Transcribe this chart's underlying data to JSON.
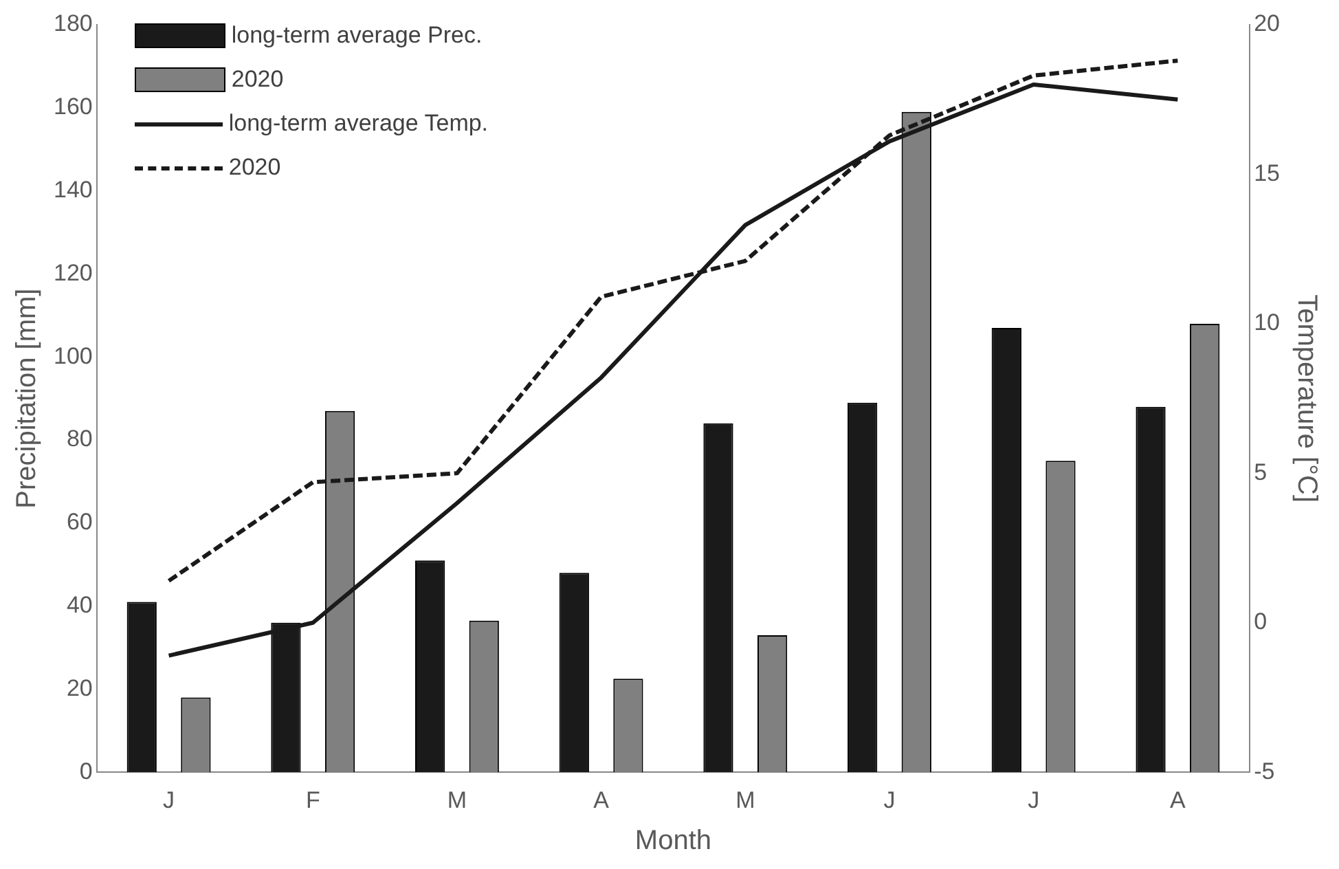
{
  "chart_data": {
    "type": "bar",
    "xlabel": "Month",
    "ylabel": "Precipitation [mm]",
    "y2label": "Temperature [°C]",
    "categories": [
      "J",
      "F",
      "M",
      "A",
      "M",
      "J",
      "J",
      "A"
    ],
    "series": [
      {
        "name": "long-term average Prec.",
        "color": "#1a1a1a",
        "values": [
          41,
          36,
          51,
          48,
          84,
          89,
          107,
          88
        ]
      },
      {
        "name": "2020",
        "color": "#808080",
        "values": [
          18,
          87,
          36.5,
          22.5,
          33,
          159,
          75,
          108
        ]
      },
      {
        "name": "long-term average Temp.",
        "type": "line",
        "axis": "y2",
        "color": "#1a1a1a",
        "line_style": "solid",
        "values": [
          -1.1,
          0,
          4,
          8.2,
          13.3,
          16.1,
          18,
          17.5
        ]
      },
      {
        "name": "2020",
        "type": "line",
        "axis": "y2",
        "color": "#1a1a1a",
        "line_style": "dashed",
        "values": [
          1.4,
          4.7,
          5,
          10.9,
          12.1,
          16.3,
          18.3,
          18.8
        ]
      }
    ],
    "ylim": [
      0,
      180
    ],
    "yticks": [
      0,
      20,
      40,
      60,
      80,
      100,
      120,
      140,
      160,
      180
    ],
    "y2lim": [
      -5,
      20
    ],
    "y2ticks": [
      -5,
      0,
      5,
      10,
      15,
      20
    ],
    "grid": false,
    "legend": "top left",
    "marker": "none"
  }
}
